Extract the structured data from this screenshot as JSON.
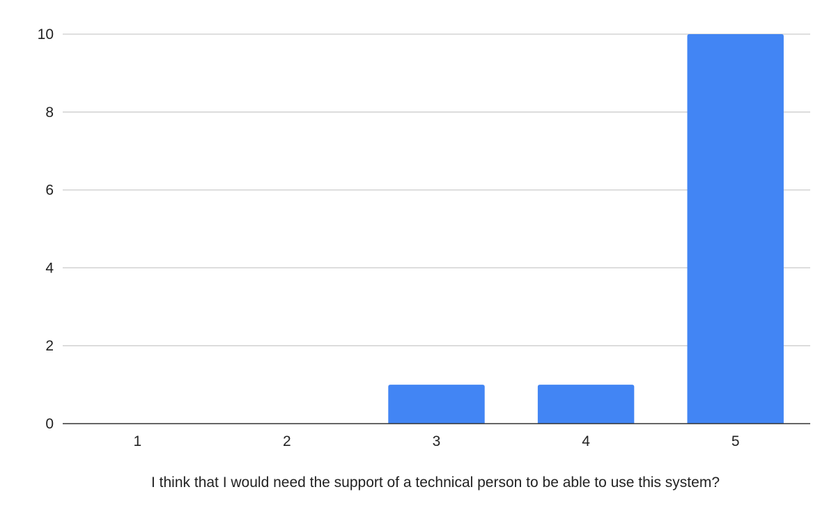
{
  "chart_data": {
    "type": "bar",
    "title": "",
    "xlabel": "I think that I would need the support of a technical person to be able to use this system?",
    "ylabel": "",
    "categories": [
      "1",
      "2",
      "3",
      "4",
      "5"
    ],
    "values": [
      0,
      0,
      1,
      1,
      10
    ],
    "ylim": [
      0,
      10
    ],
    "yticks": [
      0,
      2,
      4,
      6,
      8,
      10
    ],
    "grid": true,
    "legend": "none",
    "bar_color": "#4285f4",
    "grid_color": "#cccccc",
    "axis_color": "#333333"
  }
}
